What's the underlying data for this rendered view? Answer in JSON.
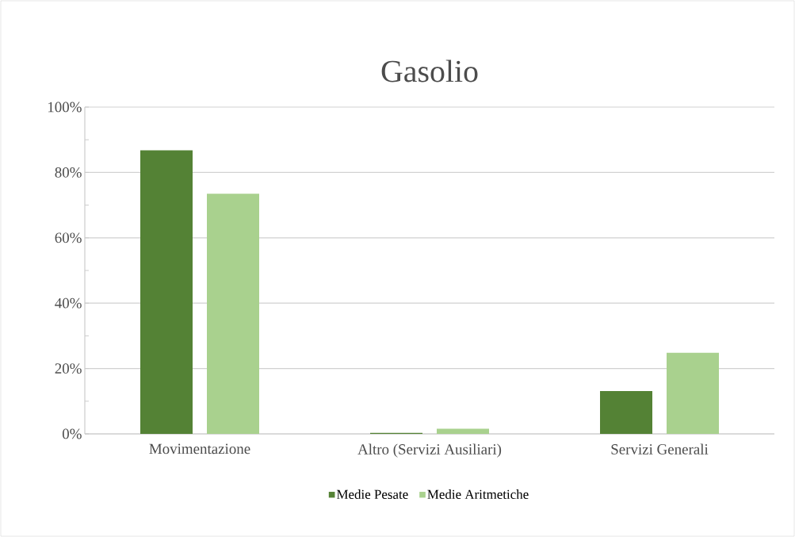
{
  "chart_data": {
    "type": "bar",
    "title": "Gasolio",
    "categories": [
      "Movimentazione",
      "Altro (Servizi Ausiliari)",
      "Servizi Generali"
    ],
    "series": [
      {
        "name": "Medie Pesate",
        "color": "#548235",
        "values": [
          86.8,
          0.3,
          13.1
        ]
      },
      {
        "name": "Medie Aritmetiche",
        "color": "#a9d18e",
        "values": [
          73.5,
          1.6,
          24.8
        ]
      }
    ],
    "ylim": [
      0,
      100
    ],
    "yticks": [
      {
        "value": 0,
        "label": "0%"
      },
      {
        "value": 20,
        "label": "20%"
      },
      {
        "value": 40,
        "label": "40%"
      },
      {
        "value": 60,
        "label": "60%"
      },
      {
        "value": 80,
        "label": "80%"
      },
      {
        "value": 100,
        "label": "100%"
      }
    ],
    "grid": "y",
    "legend": "bottom"
  }
}
